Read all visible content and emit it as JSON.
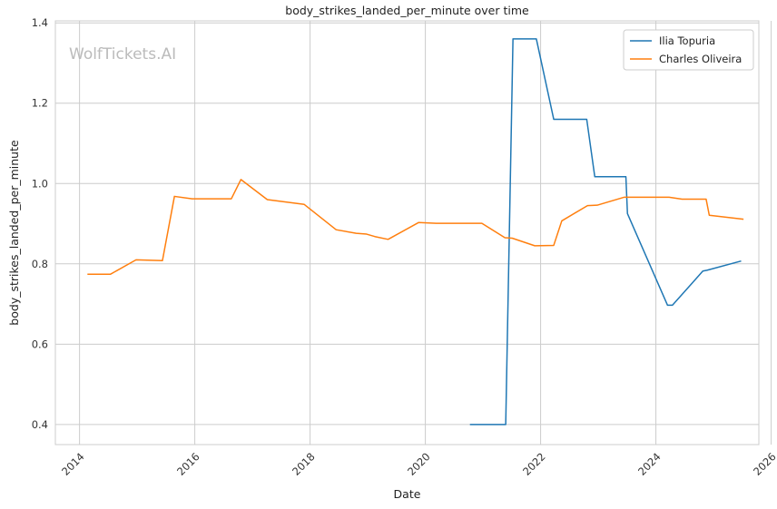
{
  "chart_data": {
    "type": "line",
    "title": "body_strikes_landed_per_minute over time",
    "xlabel": "Date",
    "ylabel": "body_strikes_landed_per_minute",
    "watermark": "WolfTickets.AI",
    "xlim": [
      "2013-08-01",
      "2025-10-15"
    ],
    "ylim": [
      0.35,
      1.405
    ],
    "x_ticks": [
      "2014",
      "2016",
      "2018",
      "2020",
      "2022",
      "2024",
      "2026"
    ],
    "y_ticks": [
      "0.4",
      "0.6",
      "0.8",
      "1.0",
      "1.2",
      "1.4"
    ],
    "grid": true,
    "legend_position": "top-right",
    "series": [
      {
        "name": "Ilia Topuria",
        "color": "#1f77b4",
        "points": [
          [
            "2020-10-10",
            0.4
          ],
          [
            "2021-05-25",
            0.4
          ],
          [
            "2021-07-10",
            1.36
          ],
          [
            "2021-12-05",
            1.36
          ],
          [
            "2022-03-25",
            1.16
          ],
          [
            "2022-10-20",
            1.16
          ],
          [
            "2022-12-10",
            1.017
          ],
          [
            "2023-06-25",
            1.017
          ],
          [
            "2023-07-05",
            0.925
          ],
          [
            "2024-03-15",
            0.697
          ],
          [
            "2024-04-15",
            0.697
          ],
          [
            "2024-10-25",
            0.782
          ],
          [
            "2024-11-20",
            0.784
          ],
          [
            "2025-06-25",
            0.807
          ]
        ]
      },
      {
        "name": "Charles Oliveira",
        "color": "#ff7f0e",
        "points": [
          [
            "2014-02-20",
            0.774
          ],
          [
            "2014-07-15",
            0.774
          ],
          [
            "2014-12-25",
            0.81
          ],
          [
            "2015-06-10",
            0.808
          ],
          [
            "2015-08-25",
            0.968
          ],
          [
            "2015-12-15",
            0.962
          ],
          [
            "2016-08-20",
            0.962
          ],
          [
            "2016-10-20",
            1.01
          ],
          [
            "2017-04-05",
            0.96
          ],
          [
            "2017-11-25",
            0.948
          ],
          [
            "2018-06-15",
            0.885
          ],
          [
            "2018-10-20",
            0.876
          ],
          [
            "2018-12-25",
            0.874
          ],
          [
            "2019-02-15",
            0.868
          ],
          [
            "2019-05-10",
            0.861
          ],
          [
            "2019-11-20",
            0.903
          ],
          [
            "2020-03-10",
            0.901
          ],
          [
            "2020-12-25",
            0.901
          ],
          [
            "2021-05-20",
            0.865
          ],
          [
            "2021-07-05",
            0.864
          ],
          [
            "2021-11-25",
            0.845
          ],
          [
            "2022-03-25",
            0.846
          ],
          [
            "2022-05-15",
            0.907
          ],
          [
            "2022-10-25",
            0.945
          ],
          [
            "2022-12-25",
            0.946
          ],
          [
            "2023-06-15",
            0.966
          ],
          [
            "2024-03-25",
            0.966
          ],
          [
            "2024-06-15",
            0.961
          ],
          [
            "2024-11-15",
            0.961
          ],
          [
            "2024-12-05",
            0.921
          ],
          [
            "2025-07-10",
            0.911
          ]
        ]
      }
    ]
  }
}
